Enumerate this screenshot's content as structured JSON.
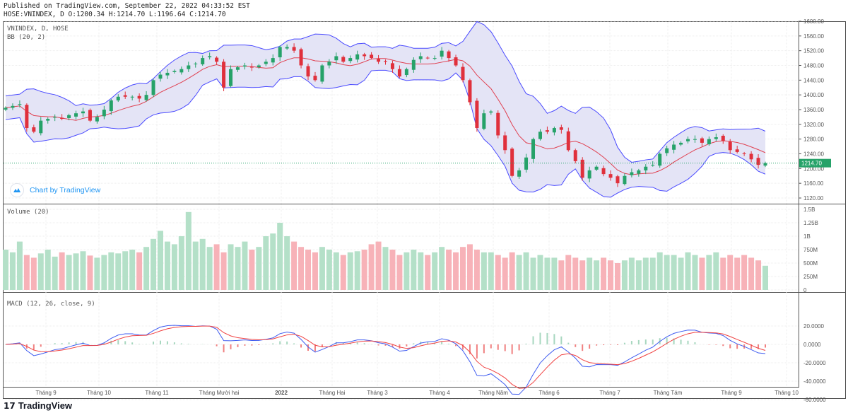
{
  "header": {
    "published": "Published on TradingView.com, September 22, 2022 04:33:52 EST",
    "ohlc": "HOSE:VNINDEX, D O:1200.34 H:1214.70 L:1196.64 C:1214.70"
  },
  "legend": {
    "symbol": "VNINDEX, D, HOSE",
    "bb": "BB (20, 2)",
    "volume": "Volume (20)",
    "macd": "MACD (12, 26, close, 9)"
  },
  "chart_by": "Chart by TradingView",
  "brand": "TradingView",
  "colors": {
    "up": "#26a269",
    "down": "#e0303c",
    "bb_line": "#4a4aff",
    "bb_fill": "#e4e4f6",
    "basis": "#e04050",
    "macd": "#3f5cf0",
    "signal": "#f04040"
  },
  "chart_data": [
    {
      "type": "candlestick",
      "title": "VNINDEX, D, HOSE",
      "last_price": "1214.70",
      "ylim": [
        1120,
        1600
      ],
      "yticks": [
        "1600.00",
        "1560.00",
        "1520.00",
        "1480.00",
        "1440.00",
        "1400.00",
        "1360.00",
        "1320.00",
        "1280.00",
        "1240.00",
        "1200.00",
        "1160.00",
        "1120.00"
      ],
      "xticks": [
        "Tháng 9",
        "Tháng 10",
        "Tháng 11",
        "Tháng Mười hai",
        "2022",
        "Tháng Hai",
        "Tháng 3",
        "Tháng 4",
        "Tháng Năm",
        "Tháng 6",
        "Tháng 7",
        "Tháng Tám",
        "Tháng 9",
        "Tháng 10"
      ],
      "close": [
        1365,
        1370,
        1375,
        1310,
        1300,
        1330,
        1335,
        1340,
        1335,
        1345,
        1350,
        1355,
        1330,
        1340,
        1360,
        1385,
        1395,
        1395,
        1395,
        1390,
        1400,
        1440,
        1455,
        1460,
        1465,
        1470,
        1480,
        1485,
        1500,
        1505,
        1490,
        1420,
        1470,
        1475,
        1480,
        1475,
        1480,
        1490,
        1500,
        1530,
        1530,
        1520,
        1480,
        1450,
        1440,
        1480,
        1490,
        1505,
        1490,
        1500,
        1510,
        1505,
        1500,
        1490,
        1490,
        1470,
        1450,
        1470,
        1495,
        1505,
        1500,
        1500,
        1520,
        1500,
        1480,
        1440,
        1380,
        1310,
        1350,
        1355,
        1290,
        1250,
        1180,
        1195,
        1230,
        1280,
        1300,
        1300,
        1310,
        1305,
        1250,
        1220,
        1175,
        1195,
        1205,
        1185,
        1175,
        1160,
        1180,
        1190,
        1195,
        1205,
        1210,
        1240,
        1255,
        1265,
        1270,
        1280,
        1280,
        1270,
        1280,
        1285,
        1275,
        1250,
        1245,
        1240,
        1225,
        1210,
        1214.7
      ]
    },
    {
      "type": "bar",
      "title": "Volume (20)",
      "yticks": [
        "1.5B",
        "1.25B",
        "1B",
        "750M",
        "500M",
        "250M",
        "0"
      ],
      "ylim": [
        0,
        1500
      ],
      "values": [
        750,
        700,
        900,
        650,
        600,
        680,
        750,
        620,
        700,
        650,
        680,
        720,
        640,
        600,
        650,
        700,
        680,
        720,
        750,
        700,
        800,
        950,
        1100,
        900,
        850,
        1000,
        1450,
        900,
        950,
        800,
        850,
        700,
        850,
        800,
        900,
        750,
        800,
        1000,
        1050,
        1250,
        1000,
        900,
        800,
        750,
        700,
        800,
        750,
        700,
        650,
        700,
        720,
        750,
        850,
        900,
        800,
        750,
        650,
        700,
        750,
        700,
        650,
        700,
        800,
        750,
        700,
        800,
        850,
        750,
        700,
        700,
        650,
        600,
        700,
        650,
        700,
        600,
        650,
        600,
        600,
        550,
        650,
        600,
        550,
        600,
        550,
        600,
        550,
        500,
        550,
        600,
        550,
        600,
        600,
        700,
        650,
        650,
        600,
        700,
        650,
        600,
        650,
        700,
        600,
        650,
        600,
        650,
        600,
        550,
        450
      ]
    },
    {
      "type": "line",
      "title": "MACD (12, 26, close, 9)",
      "yticks": [
        "20.0000",
        "0.0000",
        "-20.0000",
        "-40.0000",
        "-60.0000"
      ],
      "ylim": [
        -70,
        30
      ]
    }
  ]
}
